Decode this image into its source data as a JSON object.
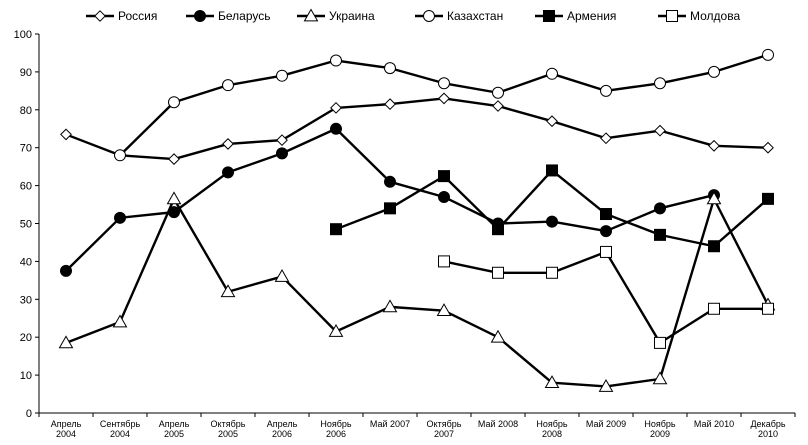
{
  "chart_data": {
    "type": "line",
    "categories": [
      [
        "Апрель",
        "2004"
      ],
      [
        "Сентябрь",
        "2004"
      ],
      [
        "Апрель",
        "2005"
      ],
      [
        "Октябрь",
        "2005"
      ],
      [
        "Апрель",
        "2006"
      ],
      [
        "Ноябрь",
        "2006"
      ],
      [
        "Май 2007"
      ],
      [
        "Октябрь",
        "2007"
      ],
      [
        "Май 2008"
      ],
      [
        "Ноябрь",
        "2008"
      ],
      [
        "Май 2009"
      ],
      [
        "Ноябрь",
        "2009"
      ],
      [
        "Май 2010"
      ],
      [
        "Декабрь",
        "2010"
      ]
    ],
    "ylim": [
      0,
      100
    ],
    "yticks": [
      0,
      10,
      20,
      30,
      40,
      50,
      60,
      70,
      80,
      90,
      100
    ],
    "grid": false,
    "legend_position": "top",
    "series": [
      {
        "name": "Россия",
        "marker": "diamond-open",
        "values": [
          73.5,
          68,
          67,
          71,
          72,
          80.5,
          81.5,
          83,
          81,
          77,
          72.5,
          74.5,
          70.5,
          70
        ]
      },
      {
        "name": "Беларусь",
        "marker": "circle-filled",
        "values": [
          37.5,
          51.5,
          53,
          63.5,
          68.5,
          75,
          61,
          57,
          50,
          50.5,
          48,
          54,
          57.5,
          null
        ]
      },
      {
        "name": "Украина",
        "marker": "triangle-open",
        "values": [
          18.5,
          24,
          56.5,
          32,
          36,
          21.5,
          28,
          27,
          20,
          8,
          7,
          9,
          56.5,
          28.5
        ]
      },
      {
        "name": "Казахстан",
        "marker": "circle-open",
        "values": [
          null,
          68,
          82,
          86.5,
          89,
          93,
          91,
          87,
          84.5,
          89.5,
          85,
          87,
          90,
          94.5
        ]
      },
      {
        "name": "Армения",
        "marker": "square-filled",
        "values": [
          null,
          null,
          null,
          null,
          null,
          48.5,
          54,
          62.5,
          48.5,
          64,
          52.5,
          47,
          44,
          56.5
        ]
      },
      {
        "name": "Молдова",
        "marker": "square-open",
        "values": [
          null,
          null,
          null,
          null,
          null,
          null,
          null,
          40,
          37,
          37,
          42.5,
          18.5,
          27.5,
          27.5
        ]
      }
    ]
  }
}
